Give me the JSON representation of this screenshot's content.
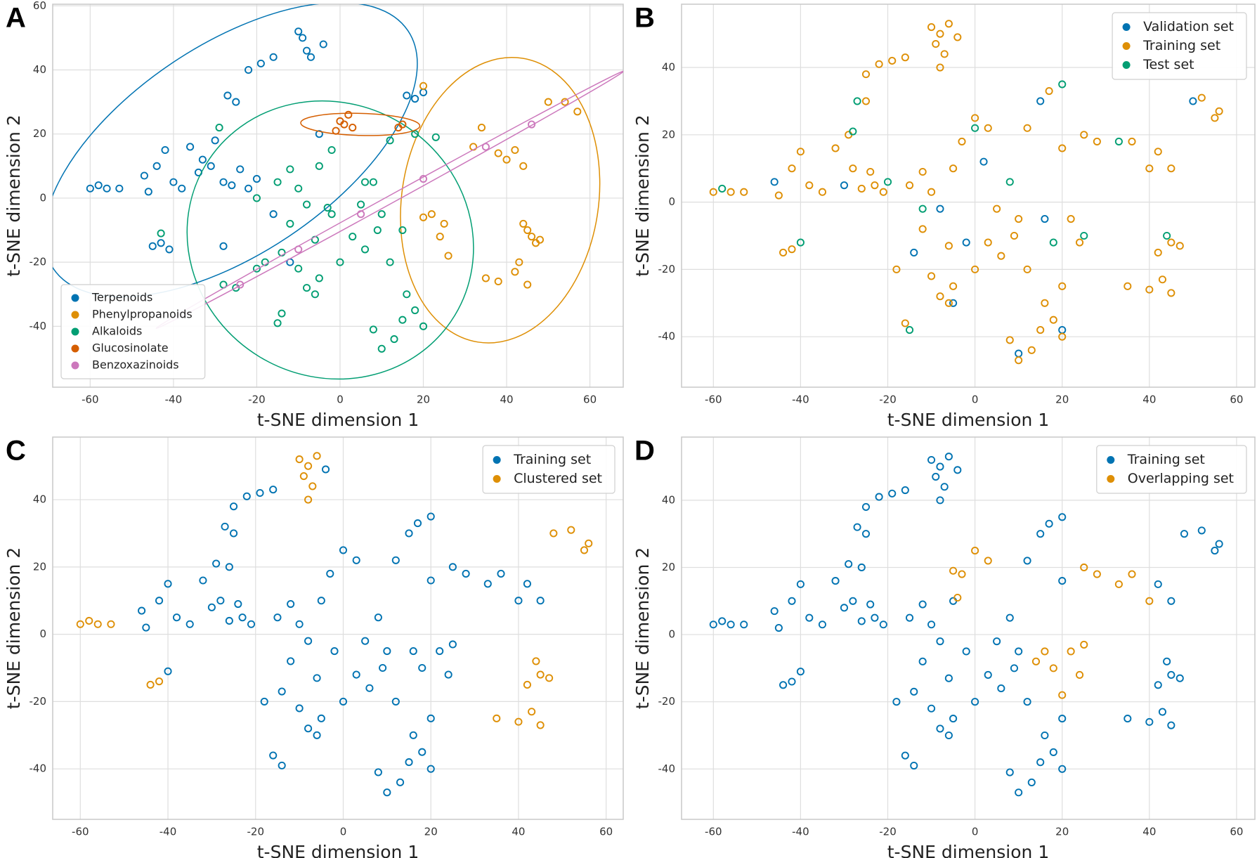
{
  "chart_data": [
    {
      "type": "scatter",
      "label": "A",
      "x_label": "t-SNE dimension 1",
      "y_label": "t-SNE dimension 2",
      "xlim": [
        -69,
        68
      ],
      "ylim": [
        -59,
        60.5
      ],
      "xticks": [
        -60,
        -40,
        -20,
        0,
        20,
        40,
        60
      ],
      "yticks": [
        -40,
        -20,
        0,
        20,
        40,
        60
      ],
      "grid": true,
      "legend": "lower left",
      "ellipses": true,
      "series": [
        {
          "name": "Terpenoids",
          "color": "#0173b2",
          "x": [
            -60,
            -58,
            -56,
            -53,
            -47,
            -46,
            -44,
            -42,
            -40,
            -38,
            -36,
            -34,
            -31,
            -28,
            -26,
            -24,
            -22,
            -20,
            -30,
            -33,
            -27,
            -25,
            -22,
            -19,
            -16,
            -10,
            -9,
            -8,
            -7,
            -4,
            -45,
            -43,
            -41,
            16,
            18,
            20,
            -5,
            -16,
            -28,
            -12
          ],
          "y": [
            3,
            4,
            3,
            3,
            7,
            2,
            10,
            15,
            5,
            3,
            16,
            8,
            10,
            5,
            4,
            9,
            3,
            6,
            18,
            12,
            32,
            30,
            40,
            42,
            44,
            52,
            50,
            46,
            44,
            48,
            -15,
            -14,
            -16,
            32,
            31,
            33,
            20,
            -5,
            -15,
            -20
          ]
        },
        {
          "name": "Phenylpropanoids",
          "color": "#de8f05",
          "x": [
            20,
            22,
            24,
            26,
            25,
            32,
            38,
            42,
            44,
            40,
            45,
            47,
            50,
            54,
            57,
            44,
            46,
            43,
            48,
            35,
            38,
            42,
            45,
            20,
            34
          ],
          "y": [
            35,
            -5,
            -12,
            -18,
            -8,
            16,
            14,
            15,
            10,
            12,
            -10,
            -14,
            30,
            30,
            27,
            -8,
            -12,
            -20,
            -13,
            -25,
            -26,
            -23,
            -27,
            -6,
            22
          ]
        },
        {
          "name": "Alkaloids",
          "color": "#029e73",
          "x": [
            -15,
            -12,
            -10,
            -8,
            -5,
            -2,
            -6,
            -12,
            -14,
            -18,
            -10,
            -5,
            0,
            3,
            6,
            9,
            10,
            5,
            -14,
            -15,
            -8,
            -6,
            8,
            12,
            8,
            10,
            13,
            15,
            18,
            20,
            16,
            -25,
            -20,
            -29,
            -28,
            -43,
            6,
            12,
            18,
            23,
            -2,
            -20,
            -3,
            15
          ],
          "y": [
            5,
            9,
            3,
            -2,
            10,
            -5,
            -13,
            -8,
            -17,
            -20,
            -22,
            -25,
            -20,
            -12,
            -16,
            -10,
            -5,
            -2,
            -36,
            -39,
            -28,
            -30,
            5,
            -20,
            -41,
            -47,
            -44,
            -38,
            -35,
            -40,
            -30,
            -28,
            -22,
            22,
            -27,
            -11,
            5,
            18,
            20,
            19,
            15,
            0,
            -3,
            -10
          ]
        },
        {
          "name": "Glucosinolate",
          "color": "#d55e00",
          "x": [
            0,
            2,
            3,
            1,
            14,
            15,
            -1
          ],
          "y": [
            24,
            26,
            22,
            23,
            22,
            23,
            21
          ]
        },
        {
          "name": "Benzoxazinoids",
          "color": "#cc78bc",
          "x": [
            -24,
            -10,
            5,
            20,
            35,
            46
          ],
          "y": [
            -27,
            -16,
            -5,
            6,
            16,
            23
          ]
        }
      ]
    },
    {
      "type": "scatter",
      "label": "B",
      "x_label": "t-SNE dimension 1",
      "y_label": "t-SNE dimension 2",
      "xlim": [
        -67.3,
        64.2
      ],
      "ylim": [
        -55,
        58.8
      ],
      "xticks": [
        -60,
        -40,
        -20,
        0,
        20,
        40,
        60
      ],
      "yticks": [
        -40,
        -20,
        0,
        20,
        40
      ],
      "grid": true,
      "legend": "upper right",
      "series": [
        {
          "name": "Validation set",
          "color": "#0173b2",
          "x": [
            -46,
            -30,
            -8,
            2,
            -2,
            16,
            15,
            50,
            -5,
            20,
            -14,
            10
          ],
          "y": [
            6,
            5,
            -2,
            12,
            -12,
            -5,
            30,
            30,
            -30,
            -38,
            -15,
            -45
          ]
        },
        {
          "name": "Training set",
          "color": "#de8f05",
          "x": [
            -10,
            -8,
            -9,
            -7,
            -8,
            -4,
            -6,
            -25,
            -22,
            -19,
            -16,
            -25,
            -29,
            -60,
            -56,
            -53,
            -45,
            -42,
            -40,
            -38,
            -35,
            -32,
            -28,
            -26,
            -23,
            -21,
            -24,
            -44,
            -42,
            -15,
            -12,
            -10,
            -5,
            -3,
            0,
            3,
            -6,
            -12,
            -18,
            -10,
            -5,
            0,
            3,
            6,
            9,
            10,
            5,
            -16,
            -8,
            -6,
            12,
            8,
            10,
            13,
            15,
            18,
            20,
            16,
            20,
            17,
            12,
            20,
            25,
            28,
            36,
            40,
            42,
            45,
            52,
            56,
            55,
            45,
            42,
            47,
            35,
            40,
            43,
            45,
            22,
            24
          ],
          "y": [
            52,
            50,
            47,
            44,
            40,
            49,
            53,
            38,
            41,
            42,
            43,
            30,
            20,
            3,
            3,
            3,
            2,
            10,
            15,
            5,
            3,
            16,
            10,
            4,
            5,
            3,
            9,
            -15,
            -14,
            5,
            9,
            3,
            10,
            18,
            25,
            22,
            -13,
            -8,
            -20,
            -22,
            -25,
            -20,
            -12,
            -16,
            -10,
            -5,
            -2,
            -36,
            -28,
            -30,
            -20,
            -41,
            -47,
            -44,
            -38,
            -35,
            -40,
            -30,
            -25,
            33,
            22,
            16,
            20,
            18,
            18,
            10,
            15,
            10,
            31,
            27,
            25,
            -12,
            -15,
            -13,
            -25,
            -26,
            -23,
            -27,
            -5,
            -12
          ]
        },
        {
          "name": "Test set",
          "color": "#029e73",
          "x": [
            -58,
            -40,
            -27,
            -28,
            -15,
            0,
            20,
            18,
            8,
            33,
            -20,
            44,
            -12,
            25
          ],
          "y": [
            4,
            -12,
            30,
            21,
            -38,
            22,
            35,
            -12,
            6,
            18,
            6,
            -10,
            -2,
            -10
          ]
        }
      ]
    },
    {
      "type": "scatter",
      "label": "C",
      "x_label": "t-SNE dimension 1",
      "y_label": "t-SNE dimension 2",
      "xlim": [
        -66.3,
        63.9
      ],
      "ylim": [
        -55,
        58.6
      ],
      "xticks": [
        -60,
        -40,
        -20,
        0,
        20,
        40,
        60
      ],
      "yticks": [
        -40,
        -20,
        0,
        20,
        40
      ],
      "grid": true,
      "legend": "upper right",
      "series": [
        {
          "name": "Training set",
          "color": "#0173b2",
          "x": [
            -25,
            -22,
            -19,
            -16,
            -27,
            -25,
            -29,
            -26,
            -46,
            -45,
            -42,
            -40,
            -38,
            -35,
            -32,
            -30,
            -28,
            -26,
            -23,
            -21,
            -24,
            -40,
            -15,
            -12,
            -10,
            -8,
            -5,
            -3,
            0,
            3,
            -2,
            -6,
            -12,
            -14,
            -18,
            -10,
            -5,
            0,
            3,
            6,
            9,
            10,
            5,
            -16,
            -14,
            -8,
            -6,
            8,
            12,
            8,
            10,
            13,
            15,
            18,
            20,
            16,
            20,
            15,
            17,
            20,
            12,
            20,
            25,
            28,
            33,
            36,
            40,
            42,
            45,
            16,
            18,
            22,
            24,
            25,
            -4
          ],
          "y": [
            38,
            41,
            42,
            43,
            32,
            30,
            21,
            20,
            7,
            2,
            10,
            15,
            5,
            3,
            16,
            8,
            10,
            4,
            5,
            3,
            9,
            -11,
            5,
            9,
            3,
            -2,
            10,
            18,
            25,
            22,
            -5,
            -13,
            -8,
            -17,
            -20,
            -22,
            -25,
            -20,
            -12,
            -16,
            -10,
            -5,
            -2,
            -36,
            -39,
            -28,
            -30,
            5,
            -20,
            -41,
            -47,
            -44,
            -38,
            -35,
            -40,
            -30,
            -25,
            30,
            33,
            35,
            22,
            16,
            20,
            18,
            15,
            18,
            10,
            15,
            10,
            -5,
            -10,
            -5,
            -12,
            -3,
            49
          ]
        },
        {
          "name": "Clustered set",
          "color": "#de8f05",
          "x": [
            -10,
            -8,
            -9,
            -7,
            -8,
            -6,
            -60,
            -58,
            -56,
            -53,
            -44,
            -42,
            48,
            52,
            56,
            55,
            44,
            45,
            42,
            47,
            35,
            40,
            43,
            45
          ],
          "y": [
            52,
            50,
            47,
            44,
            40,
            53,
            3,
            4,
            3,
            3,
            -15,
            -14,
            30,
            31,
            27,
            25,
            -8,
            -12,
            -15,
            -13,
            -25,
            -26,
            -23,
            -27
          ]
        }
      ]
    },
    {
      "type": "scatter",
      "label": "D",
      "x_label": "t-SNE dimension 1",
      "y_label": "t-SNE dimension 2",
      "xlim": [
        -67.3,
        64.2
      ],
      "ylim": [
        -55,
        58.8
      ],
      "xticks": [
        -60,
        -40,
        -20,
        0,
        20,
        40,
        60
      ],
      "yticks": [
        -40,
        -20,
        0,
        20,
        40
      ],
      "grid": true,
      "legend": "upper right",
      "series": [
        {
          "name": "Training set",
          "color": "#0173b2",
          "x": [
            -10,
            -8,
            -9,
            -7,
            -8,
            -4,
            -6,
            -25,
            -22,
            -19,
            -16,
            -27,
            -25,
            -29,
            -26,
            -60,
            -58,
            -56,
            -53,
            -46,
            -45,
            -42,
            -40,
            -38,
            -35,
            -32,
            -30,
            -28,
            -26,
            -23,
            -21,
            -24,
            -44,
            -42,
            -40,
            -15,
            -12,
            -10,
            -8,
            -5,
            -2,
            -6,
            -12,
            -14,
            -18,
            -10,
            -5,
            0,
            3,
            6,
            9,
            10,
            5,
            -16,
            -14,
            -8,
            -6,
            8,
            12,
            8,
            10,
            13,
            15,
            18,
            20,
            16,
            20,
            15,
            17,
            20,
            12,
            20,
            42,
            45,
            48,
            52,
            56,
            55,
            44,
            45,
            42,
            47,
            35,
            40,
            43,
            45
          ],
          "y": [
            52,
            50,
            47,
            44,
            40,
            49,
            53,
            38,
            41,
            42,
            43,
            32,
            30,
            21,
            20,
            3,
            4,
            3,
            3,
            7,
            2,
            10,
            15,
            5,
            3,
            16,
            8,
            10,
            4,
            5,
            3,
            9,
            -15,
            -14,
            -11,
            5,
            9,
            3,
            -2,
            10,
            -5,
            -13,
            -8,
            -17,
            -20,
            -22,
            -25,
            -20,
            -12,
            -16,
            -10,
            -5,
            -2,
            -36,
            -39,
            -28,
            -30,
            5,
            -20,
            -41,
            -47,
            -44,
            -38,
            -35,
            -40,
            -30,
            -25,
            30,
            33,
            35,
            22,
            16,
            15,
            10,
            30,
            31,
            27,
            25,
            -8,
            -12,
            -15,
            -13,
            -25,
            -26,
            -23,
            -27
          ]
        },
        {
          "name": "Overlapping set",
          "color": "#de8f05",
          "x": [
            -3,
            0,
            3,
            -5,
            -4,
            25,
            28,
            33,
            36,
            40,
            16,
            18,
            22,
            24,
            25,
            20,
            14
          ],
          "y": [
            18,
            25,
            22,
            19,
            11,
            20,
            18,
            15,
            18,
            10,
            -5,
            -10,
            -5,
            -12,
            -3,
            -18,
            -8
          ]
        }
      ]
    }
  ]
}
